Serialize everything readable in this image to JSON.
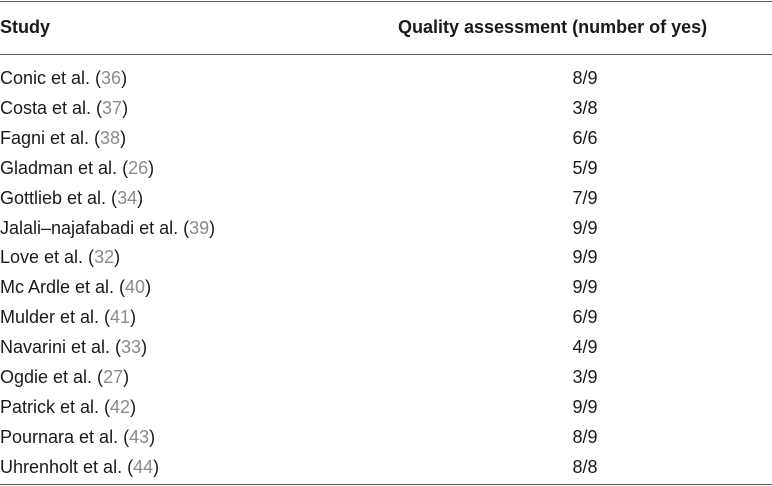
{
  "table": {
    "header": [
      "Study",
      "Quality assessment (number of yes)"
    ],
    "rows": [
      {
        "study": "Conic et al. (",
        "ref": "36",
        "close": ")",
        "quality": "8/9"
      },
      {
        "study": "Costa et al. (",
        "ref": "37",
        "close": ")",
        "quality": "3/8"
      },
      {
        "study": "Fagni et al. (",
        "ref": "38",
        "close": ")",
        "quality": "6/6"
      },
      {
        "study": "Gladman et al. (",
        "ref": "26",
        "close": ")",
        "quality": "5/9"
      },
      {
        "study": "Gottlieb et al. (",
        "ref": "34",
        "close": ")",
        "quality": "7/9"
      },
      {
        "study": "Jalali–najafabadi et al. (",
        "ref": "39",
        "close": ")",
        "quality": "9/9"
      },
      {
        "study": "Love et al. (",
        "ref": "32",
        "close": ")",
        "quality": "9/9"
      },
      {
        "study": "Mc Ardle et al. (",
        "ref": "40",
        "close": ")",
        "quality": "9/9"
      },
      {
        "study": "Mulder et al. (",
        "ref": "41",
        "close": ")",
        "quality": "6/9"
      },
      {
        "study": "Navarini et al. (",
        "ref": "33",
        "close": ")",
        "quality": "4/9"
      },
      {
        "study": "Ogdie et al. (",
        "ref": "27",
        "close": ")",
        "quality": "3/9"
      },
      {
        "study": "Patrick et al. (",
        "ref": "42",
        "close": ")",
        "quality": "9/9"
      },
      {
        "study": "Pournara et al. (",
        "ref": "43",
        "close": ")",
        "quality": "8/9"
      },
      {
        "study": "Uhrenholt et al. (",
        "ref": "44",
        "close": ")",
        "quality": "8/8"
      }
    ]
  }
}
